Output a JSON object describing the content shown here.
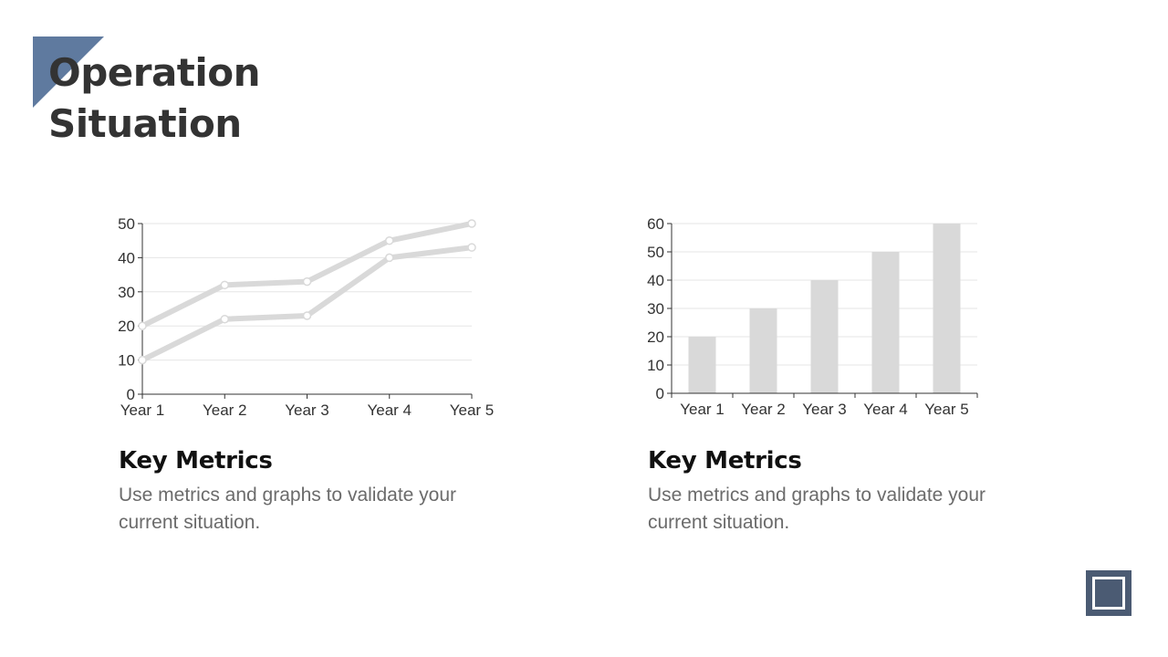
{
  "page": {
    "title": "Operation\nSituation"
  },
  "cards": [
    {
      "title": "Key Metrics",
      "description": "Use metrics and graphs to validate your current situation."
    },
    {
      "title": "Key Metrics",
      "description": "Use metrics and graphs to validate your current situation."
    }
  ],
  "chart_data": [
    {
      "type": "line",
      "categories": [
        "Year 1",
        "Year 2",
        "Year 3",
        "Year 4",
        "Year 5"
      ],
      "series": [
        {
          "values": [
            20,
            32,
            33,
            45,
            50
          ]
        },
        {
          "values": [
            10,
            22,
            23,
            40,
            43
          ]
        }
      ],
      "ylim": [
        0,
        50
      ],
      "yticks": [
        0,
        10,
        20,
        30,
        40,
        50
      ],
      "grid": true,
      "colors": {
        "line": "#d9d9d9",
        "grid": "#e6e6e6",
        "axis": "#333333"
      }
    },
    {
      "type": "bar",
      "categories": [
        "Year 1",
        "Year 2",
        "Year 3",
        "Year 4",
        "Year 5"
      ],
      "values": [
        20,
        30,
        40,
        50,
        60
      ],
      "ylim": [
        0,
        60
      ],
      "yticks": [
        0,
        10,
        20,
        30,
        40,
        50,
        60
      ],
      "grid": true,
      "colors": {
        "bar": "#d9d9d9",
        "grid": "#e6e6e6",
        "axis": "#333333"
      }
    }
  ],
  "colors": {
    "accent": "#5f7a9f",
    "icon": "#4b5b73"
  }
}
